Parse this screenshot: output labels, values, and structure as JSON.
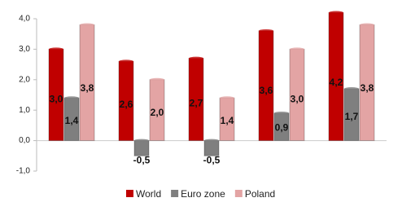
{
  "chart_data": {
    "type": "bar",
    "categories": [
      null,
      null,
      null,
      null,
      null
    ],
    "series": [
      {
        "name": "World",
        "color": "#c00000",
        "values": [
          3.0,
          2.6,
          2.7,
          3.6,
          4.2
        ],
        "value_labels": [
          "3,0",
          "2,6",
          "2,7",
          "3,6",
          "4,2"
        ]
      },
      {
        "name": "Euro zone",
        "color": "#7f7f7f",
        "values": [
          1.4,
          -0.5,
          -0.5,
          0.9,
          1.7
        ],
        "value_labels": [
          "1,4",
          "-0,5",
          "-0,5",
          "0,9",
          "1,7"
        ]
      },
      {
        "name": "Poland",
        "color": "#e3a4a4",
        "values": [
          3.8,
          2.0,
          1.4,
          3.0,
          3.8
        ],
        "value_labels": [
          "3,8",
          "2,0",
          "1,4",
          "3,0",
          "3,8"
        ]
      }
    ],
    "ylim": [
      -1.0,
      4.0
    ],
    "yticks": [
      {
        "value": -1.0,
        "label": "-1,0"
      },
      {
        "value": 0.0,
        "label": "0,0"
      },
      {
        "value": 1.0,
        "label": "1,0"
      },
      {
        "value": 2.0,
        "label": "2,0"
      },
      {
        "value": 3.0,
        "label": "3,0"
      },
      {
        "value": 4.0,
        "label": "4,0"
      }
    ],
    "grid": false,
    "legend": "bottom"
  }
}
